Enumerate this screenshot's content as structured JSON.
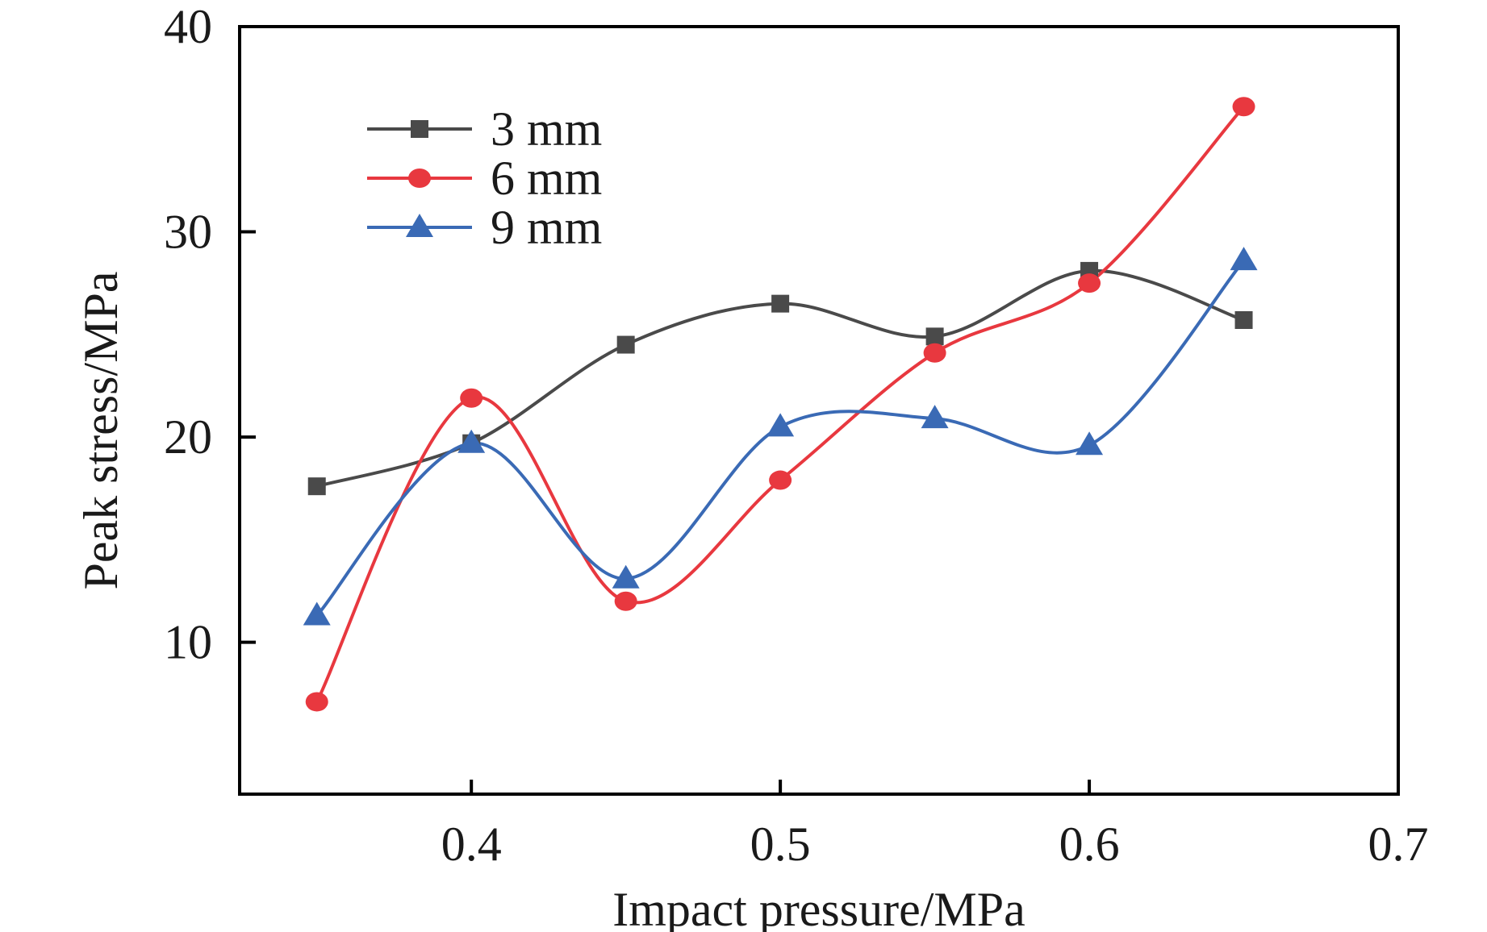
{
  "chart_data": {
    "type": "line",
    "title": "",
    "xlabel": "Impact pressure/MPa",
    "ylabel": "Peak stress/MPa",
    "xlim": [
      0.325,
      0.7
    ],
    "ylim": [
      2.6,
      40
    ],
    "xticks": [
      0.4,
      0.5,
      0.6,
      0.7
    ],
    "xtick_labels": [
      "0.4",
      "0.5",
      "0.6",
      "0.7"
    ],
    "yticks": [
      10,
      20,
      30,
      40
    ],
    "ytick_labels": [
      "10",
      "20",
      "30",
      "40"
    ],
    "grid": false,
    "smooth": true,
    "legend_position": "top-left",
    "x": [
      0.35,
      0.4,
      0.45,
      0.5,
      0.55,
      0.6,
      0.65
    ],
    "series": [
      {
        "name": "3 mm",
        "marker": "square",
        "color": "#4a4a4a",
        "values": [
          17.6,
          19.7,
          24.5,
          26.5,
          24.9,
          28.1,
          25.7
        ]
      },
      {
        "name": "6 mm",
        "marker": "circle",
        "color": "#e8383f",
        "values": [
          7.1,
          21.9,
          12.0,
          17.9,
          24.1,
          27.5,
          36.1
        ]
      },
      {
        "name": "9 mm",
        "marker": "triangle",
        "color": "#3a6ab5",
        "values": [
          11.3,
          19.7,
          13.1,
          20.5,
          20.9,
          19.6,
          28.6
        ]
      }
    ]
  }
}
